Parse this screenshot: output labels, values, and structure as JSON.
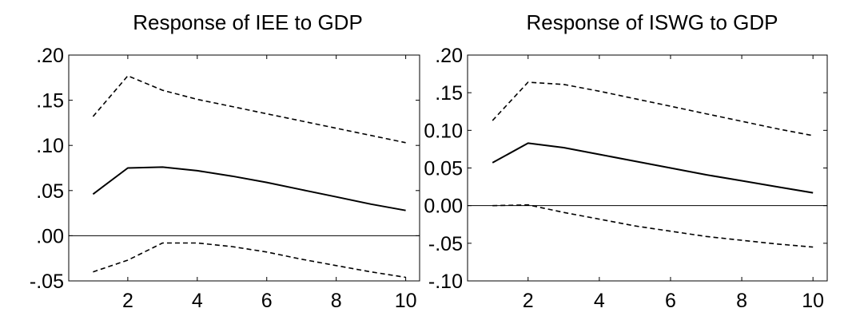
{
  "chart_data": [
    {
      "type": "line",
      "title": "Response of IEE to GDP",
      "xlabel": "",
      "ylabel": "",
      "x": [
        1,
        2,
        3,
        4,
        5,
        6,
        7,
        8,
        9,
        10
      ],
      "xlim": [
        0.3,
        10.4
      ],
      "ylim": [
        -0.05,
        0.2
      ],
      "x_ticks": [
        2,
        4,
        6,
        8,
        10
      ],
      "x_tick_labels": [
        "2",
        "4",
        "6",
        "8",
        "10"
      ],
      "y_ticks": [
        -0.05,
        0.0,
        0.05,
        0.1,
        0.15,
        0.2
      ],
      "y_tick_labels": [
        "-.05",
        ".00",
        ".05",
        ".10",
        ".15",
        ".20"
      ],
      "zero_line": true,
      "grid": false,
      "legend": "none",
      "series": [
        {
          "style": "solid",
          "values": [
            0.046,
            0.075,
            0.076,
            0.072,
            0.066,
            0.059,
            0.051,
            0.043,
            0.035,
            0.028
          ]
        },
        {
          "style": "dashed",
          "values": [
            0.132,
            0.177,
            0.161,
            0.151,
            0.143,
            0.135,
            0.127,
            0.119,
            0.111,
            0.103
          ]
        },
        {
          "style": "dashed",
          "values": [
            -0.04,
            -0.027,
            -0.008,
            -0.008,
            -0.012,
            -0.018,
            -0.026,
            -0.033,
            -0.04,
            -0.046
          ]
        }
      ]
    },
    {
      "type": "line",
      "title": "Response of ISWG to GDP",
      "xlabel": "",
      "ylabel": "",
      "x": [
        1,
        2,
        3,
        4,
        5,
        6,
        7,
        8,
        9,
        10
      ],
      "xlim": [
        0.3,
        10.4
      ],
      "ylim": [
        -0.1,
        0.2
      ],
      "x_ticks": [
        2,
        4,
        6,
        8,
        10
      ],
      "x_tick_labels": [
        "2",
        "4",
        "6",
        "8",
        "10"
      ],
      "y_ticks": [
        -0.1,
        -0.05,
        0.0,
        0.05,
        0.1,
        0.15,
        0.2
      ],
      "y_tick_labels": [
        "-.10",
        "-.05",
        "0.00",
        "0.05",
        "0.10",
        ".15",
        ".20"
      ],
      "zero_line": true,
      "grid": false,
      "legend": "none",
      "series": [
        {
          "style": "solid",
          "values": [
            0.057,
            0.083,
            0.077,
            0.068,
            0.059,
            0.05,
            0.041,
            0.033,
            0.025,
            0.017
          ]
        },
        {
          "style": "dashed",
          "values": [
            0.113,
            0.164,
            0.161,
            0.152,
            0.142,
            0.132,
            0.122,
            0.112,
            0.102,
            0.093
          ]
        },
        {
          "style": "dashed",
          "values": [
            0.0,
            0.001,
            -0.009,
            -0.018,
            -0.027,
            -0.034,
            -0.041,
            -0.046,
            -0.051,
            -0.055
          ]
        }
      ]
    }
  ]
}
